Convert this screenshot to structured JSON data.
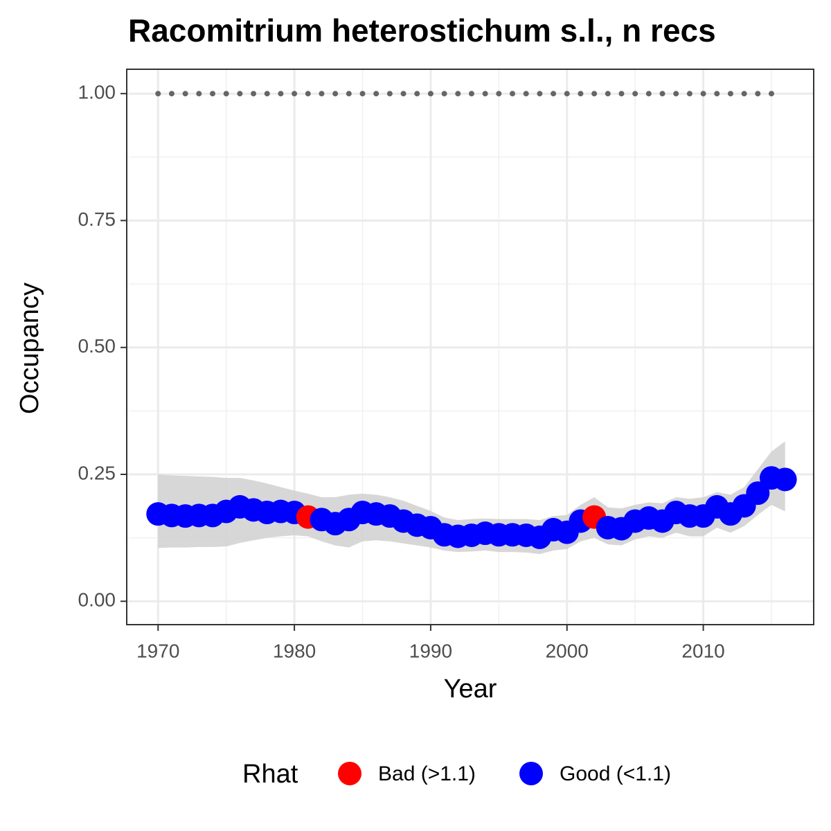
{
  "chart_data": {
    "type": "scatter",
    "title": "Racomitrium heterostichum s.l., n recs",
    "x_label": "Year",
    "y_label": "Occupancy",
    "legend_title": "Rhat",
    "legend_position": "bottom",
    "grid": true,
    "x": [
      1970,
      1971,
      1972,
      1973,
      1974,
      1975,
      1976,
      1977,
      1978,
      1979,
      1980,
      1981,
      1982,
      1983,
      1984,
      1985,
      1986,
      1987,
      1988,
      1989,
      1990,
      1991,
      1992,
      1993,
      1994,
      1995,
      1996,
      1997,
      1998,
      1999,
      2000,
      2001,
      2002,
      2003,
      2004,
      2005,
      2006,
      2007,
      2008,
      2009,
      2010,
      2011,
      2012,
      2013,
      2014,
      2015,
      2016
    ],
    "series": [
      {
        "name": "Bad (>1.1)",
        "color": "#ff0000",
        "values": [
          null,
          null,
          null,
          null,
          null,
          null,
          null,
          null,
          null,
          null,
          null,
          0.166,
          null,
          null,
          null,
          null,
          null,
          null,
          null,
          null,
          null,
          null,
          null,
          null,
          null,
          null,
          null,
          null,
          null,
          null,
          null,
          null,
          0.166,
          null,
          null,
          null,
          null,
          null,
          null,
          null,
          null,
          null,
          null,
          null,
          null,
          null,
          null
        ]
      },
      {
        "name": "Good (<1.1)",
        "color": "#0000ff",
        "values": [
          0.172,
          0.169,
          0.168,
          0.169,
          0.169,
          0.177,
          0.186,
          0.18,
          0.175,
          0.177,
          0.175,
          null,
          0.161,
          0.153,
          0.161,
          0.175,
          0.172,
          0.168,
          0.158,
          0.15,
          0.145,
          0.131,
          0.128,
          0.13,
          0.134,
          0.131,
          0.131,
          0.13,
          0.126,
          0.141,
          0.136,
          0.158,
          null,
          0.145,
          0.143,
          0.158,
          0.164,
          0.158,
          0.175,
          0.168,
          0.168,
          0.186,
          0.172,
          0.188,
          0.213,
          0.243,
          0.24
        ]
      }
    ],
    "ribbon_color": "#d0d0d0",
    "upper": [
      0.25,
      0.248,
      0.247,
      0.246,
      0.245,
      0.243,
      0.243,
      0.238,
      0.232,
      0.225,
      0.218,
      0.212,
      0.205,
      0.205,
      0.21,
      0.212,
      0.21,
      0.205,
      0.198,
      0.188,
      0.178,
      0.165,
      0.16,
      0.162,
      0.163,
      0.162,
      0.162,
      0.162,
      0.16,
      0.168,
      0.17,
      0.19,
      0.205,
      0.185,
      0.183,
      0.19,
      0.195,
      0.193,
      0.205,
      0.202,
      0.205,
      0.215,
      0.21,
      0.225,
      0.26,
      0.295,
      0.315
    ],
    "lower": [
      0.105,
      0.106,
      0.106,
      0.107,
      0.107,
      0.108,
      0.115,
      0.12,
      0.125,
      0.128,
      0.13,
      0.128,
      0.118,
      0.11,
      0.106,
      0.118,
      0.12,
      0.118,
      0.114,
      0.11,
      0.106,
      0.1,
      0.097,
      0.098,
      0.1,
      0.097,
      0.097,
      0.096,
      0.093,
      0.1,
      0.103,
      0.118,
      0.125,
      0.112,
      0.11,
      0.122,
      0.128,
      0.125,
      0.135,
      0.128,
      0.128,
      0.145,
      0.135,
      0.148,
      0.17,
      0.19,
      0.177
    ],
    "reference": {
      "color": "#666666",
      "x": [
        1970,
        1971,
        1972,
        1973,
        1974,
        1975,
        1976,
        1977,
        1978,
        1979,
        1980,
        1981,
        1982,
        1983,
        1984,
        1985,
        1986,
        1987,
        1988,
        1989,
        1990,
        1991,
        1992,
        1993,
        1994,
        1995,
        1996,
        1997,
        1998,
        1999,
        2000,
        2001,
        2002,
        2003,
        2004,
        2005,
        2006,
        2007,
        2008,
        2009,
        2010,
        2011,
        2012,
        2013,
        2014,
        2015
      ],
      "values": [
        1,
        1,
        1,
        1,
        1,
        1,
        1,
        1,
        1,
        1,
        1,
        1,
        1,
        1,
        1,
        1,
        1,
        1,
        1,
        1,
        1,
        1,
        1,
        1,
        1,
        1,
        1,
        1,
        1,
        1,
        1,
        1,
        1,
        1,
        1,
        1,
        1,
        1,
        1,
        1,
        1,
        1,
        1,
        1,
        1,
        1
      ]
    },
    "xlim": [
      1967.7,
      2018.1
    ],
    "ylim": [
      -0.046,
      1.048
    ],
    "xticks": [
      1970,
      1980,
      1990,
      2000,
      2010
    ],
    "yticks": [
      {
        "value": 0,
        "label": "0.00"
      },
      {
        "value": 0.25,
        "label": "0.25"
      },
      {
        "value": 0.5,
        "label": "0.50"
      },
      {
        "value": 0.75,
        "label": "0.75"
      },
      {
        "value": 1,
        "label": "1.00"
      }
    ],
    "x_minor_grid": [
      1975,
      1985,
      1995,
      2005,
      2015
    ],
    "y_minor_grid": [
      0.125,
      0.375,
      0.625,
      0.875
    ]
  }
}
